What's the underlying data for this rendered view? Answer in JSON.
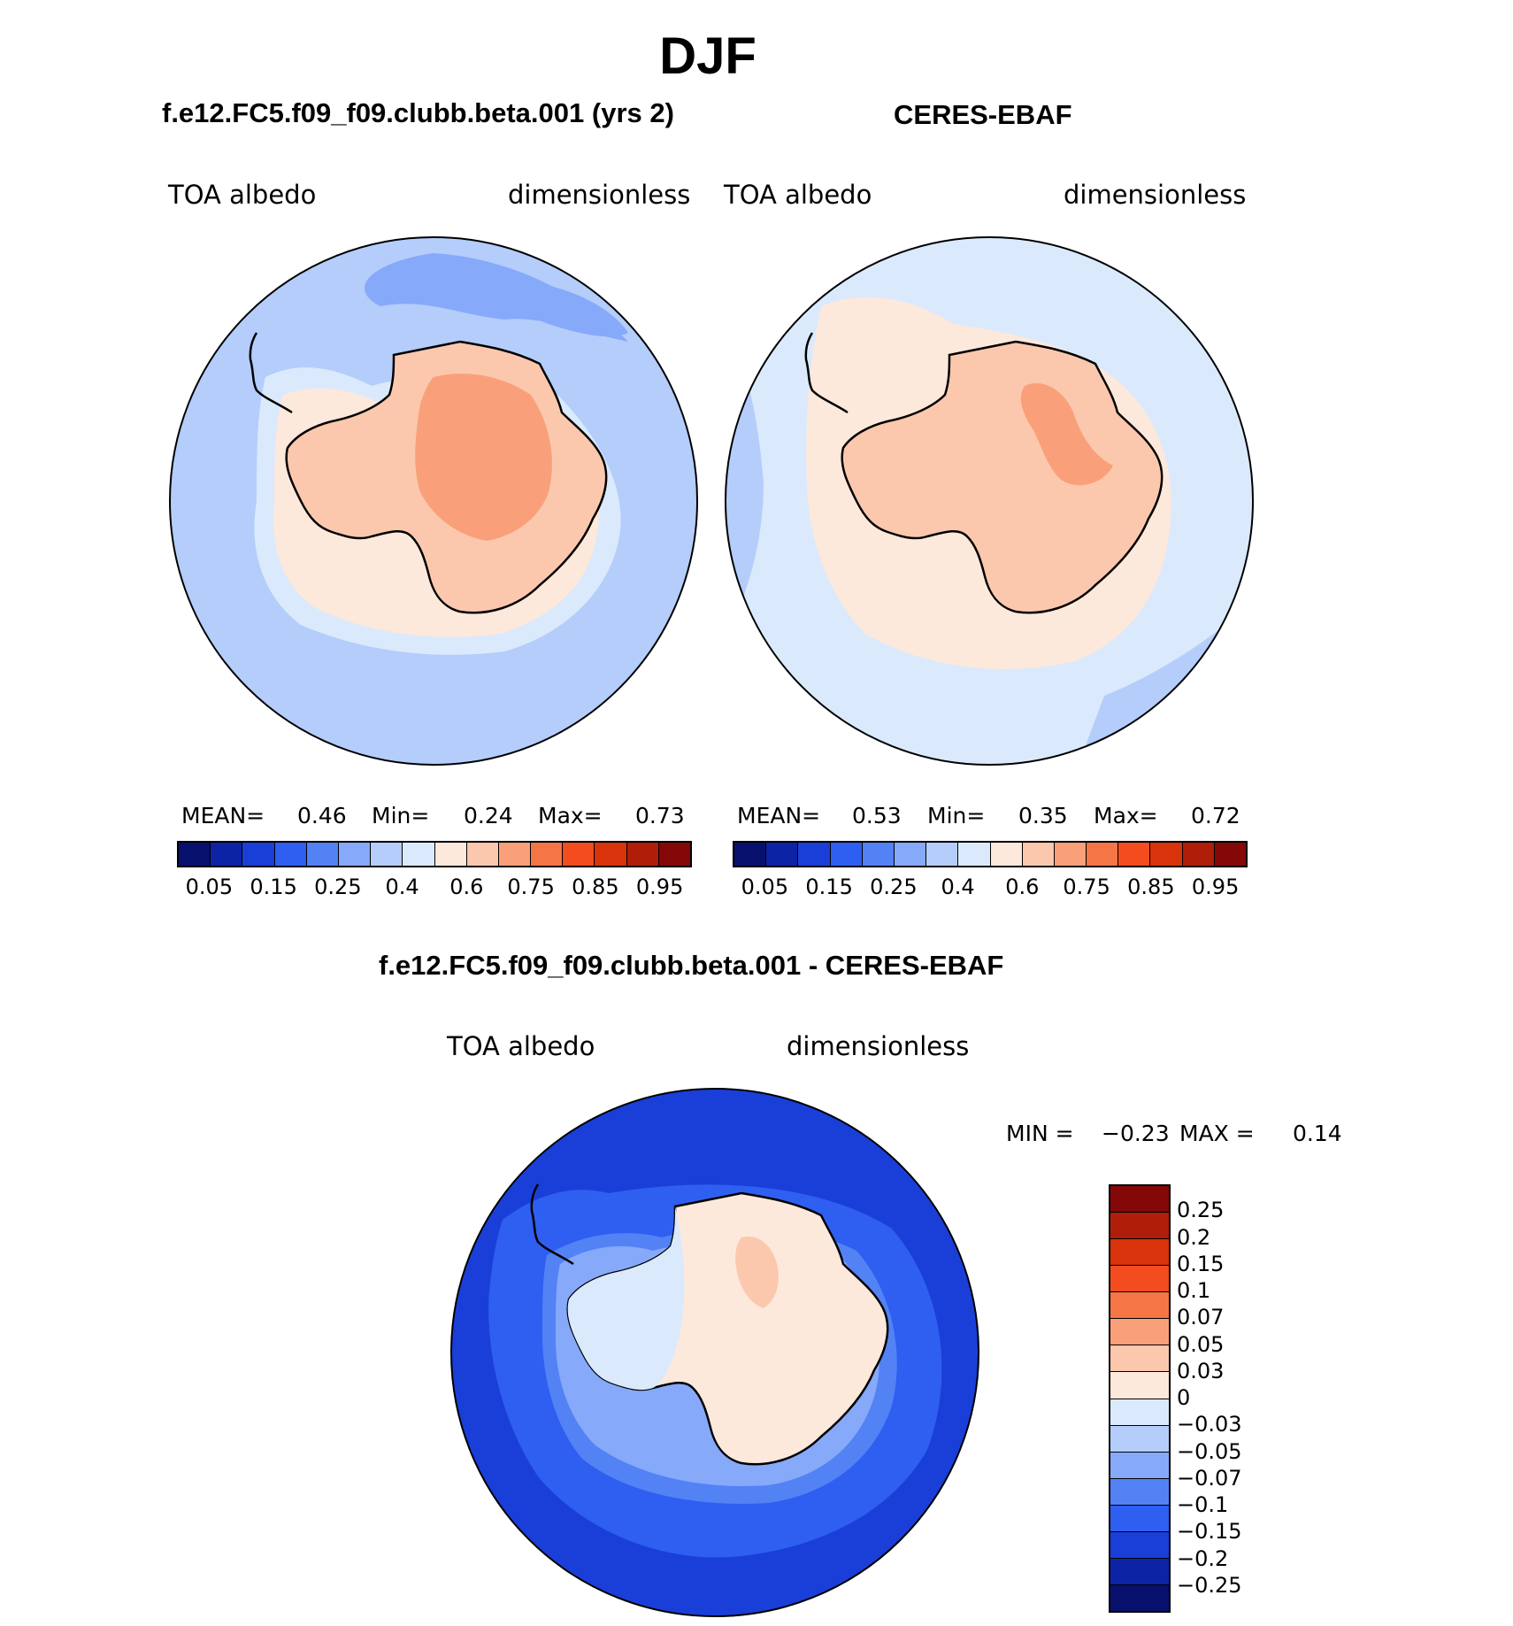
{
  "figure_title": "DJF",
  "panels": {
    "model": {
      "title": "f.e12.FC5.f09_f09.clubb.beta.001 (yrs 2)",
      "variable": "TOA albedo",
      "units": "dimensionless",
      "stats": {
        "mean_label": "MEAN=",
        "mean": "0.46",
        "min_label": "Min=",
        "min": "0.24",
        "max_label": "Max=",
        "max": "0.73"
      }
    },
    "obs": {
      "title": "CERES-EBAF",
      "variable": "TOA albedo",
      "units": "dimensionless",
      "stats": {
        "mean_label": "MEAN=",
        "mean": "0.53",
        "min_label": "Min=",
        "min": "0.35",
        "max_label": "Max=",
        "max": "0.72"
      }
    },
    "diff": {
      "title": "f.e12.FC5.f09_f09.clubb.beta.001 - CERES-EBAF",
      "variable": "TOA albedo",
      "units": "dimensionless",
      "stats": {
        "min_label": "MIN =",
        "min": "−0.23",
        "max_label": "MAX =",
        "max": "0.14"
      }
    }
  },
  "colorbar_abs": {
    "colors": [
      "#08106e",
      "#0c23a6",
      "#1a3fd8",
      "#2f5ff0",
      "#5382f5",
      "#86a9fa",
      "#b4cdfb",
      "#daeafc",
      "#fde8dc",
      "#fbc8ae",
      "#f9a07a",
      "#f57547",
      "#f24c1f",
      "#d8330a",
      "#b01e0a",
      "#840808"
    ],
    "tick_labels": [
      "0.05",
      "0.15",
      "0.25",
      "0.4",
      "0.6",
      "0.75",
      "0.85",
      "0.95"
    ]
  },
  "colorbar_diff": {
    "colors": [
      "#840808",
      "#b01e0a",
      "#d8330a",
      "#f24c1f",
      "#f57547",
      "#f9a07a",
      "#fbc8ae",
      "#fde8dc",
      "#daeafc",
      "#b4cdfb",
      "#86a9fa",
      "#5382f5",
      "#2f5ff0",
      "#1a3fd8",
      "#0c23a6",
      "#08106e"
    ],
    "tick_labels": [
      "0.25",
      "0.2",
      "0.15",
      "0.1",
      "0.07",
      "0.05",
      "0.03",
      "0",
      "−0.03",
      "−0.05",
      "−0.07",
      "−0.1",
      "−0.15",
      "−0.2",
      "−0.25"
    ]
  },
  "map_colors": {
    "model_ocean": "#b4cdfb",
    "model_ocean_dark": "#86a9fa",
    "model_seaice": "#daeafc",
    "model_ice_edge": "#fde8dc",
    "model_land": "#fbc8ae",
    "model_land_high": "#f9a07a",
    "obs_ocean": "#daeafc",
    "obs_ocean_dark": "#b4cdfb",
    "obs_seaice": "#fde8dc",
    "obs_land": "#fbc8ae",
    "obs_land_high": "#f9a07a",
    "diff_ocean": "#1a3fd8",
    "diff_ocean_mid": "#2f5ff0",
    "diff_ring": "#5382f5",
    "diff_ice_edge": "#86a9fa",
    "diff_west": "#daeafc",
    "diff_east": "#fde8dc",
    "diff_high": "#fbc8ae"
  }
}
